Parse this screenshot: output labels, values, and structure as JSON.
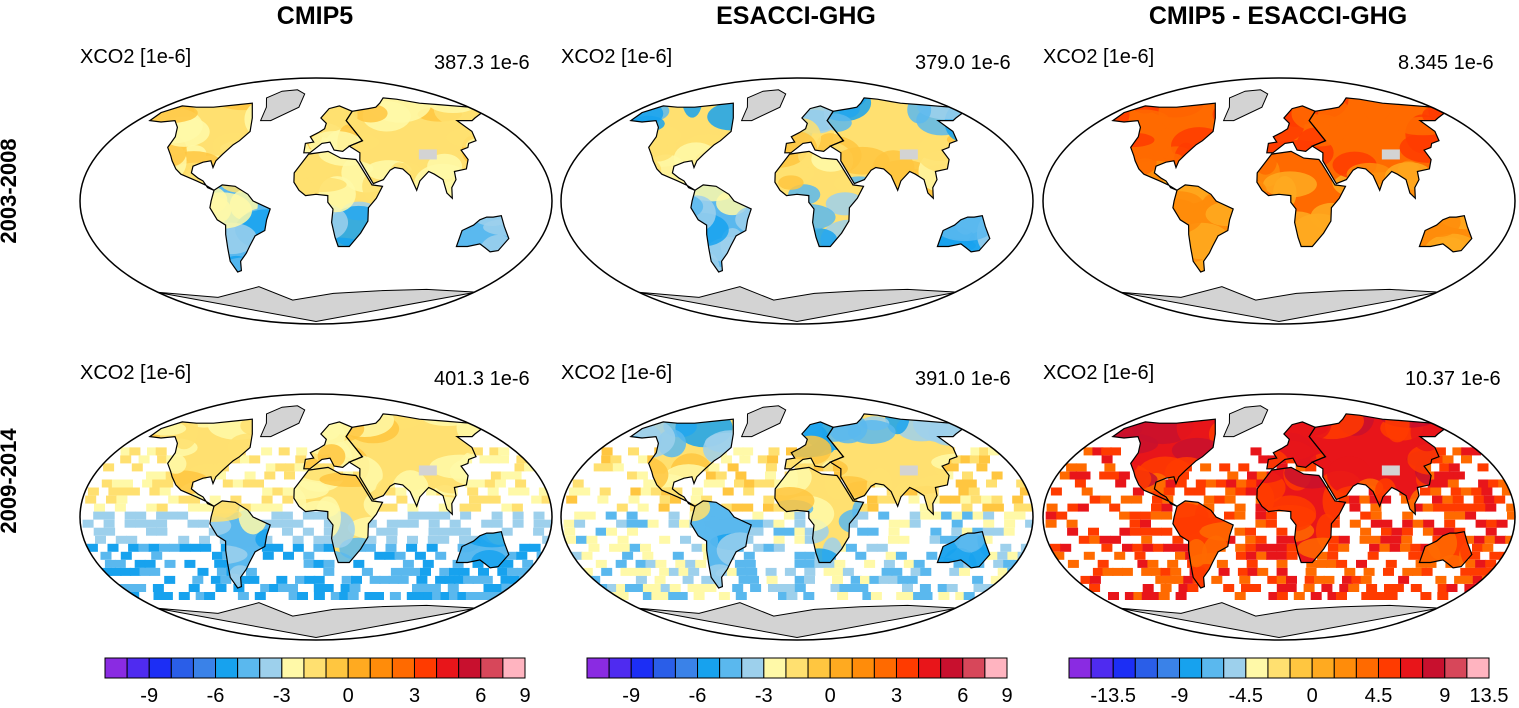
{
  "columns": [
    {
      "title": "CMIP5"
    },
    {
      "title": "ESACCI-GHG"
    },
    {
      "title": "CMIP5 - ESACCI-GHG"
    }
  ],
  "rows": [
    {
      "title": "2003-2008"
    },
    {
      "title": "2009-2014"
    }
  ],
  "panels": [
    {
      "var_label": "XCO2 [1e-6]",
      "mean_label": "387.3 1e-6",
      "scheme": "mixed_abs",
      "ocean_cover": false
    },
    {
      "var_label": "XCO2 [1e-6]",
      "mean_label": "379.0 1e-6",
      "scheme": "mixed_obs",
      "ocean_cover": false
    },
    {
      "var_label": "XCO2 [1e-6]",
      "mean_label": "8.345 1e-6",
      "scheme": "diff_orange",
      "ocean_cover": false
    },
    {
      "var_label": "XCO2 [1e-6]",
      "mean_label": "401.3 1e-6",
      "scheme": "mixed_abs",
      "ocean_cover": true
    },
    {
      "var_label": "XCO2 [1e-6]",
      "mean_label": "391.0 1e-6",
      "scheme": "mixed_obs",
      "ocean_cover": true
    },
    {
      "var_label": "XCO2 [1e-6]",
      "mean_label": "10.37 1e-6",
      "scheme": "diff_red",
      "ocean_cover": true
    }
  ],
  "colorbars": [
    {
      "tick_labels": [
        "-9",
        "-6",
        "-3",
        "0",
        "3",
        "6",
        "9"
      ]
    },
    {
      "tick_labels": [
        "-9",
        "-6",
        "-3",
        "0",
        "3",
        "6",
        "9"
      ]
    },
    {
      "tick_labels": [
        "-13.5",
        "-9",
        "-4.5",
        "0",
        "4.5",
        "9",
        "13.5"
      ]
    }
  ],
  "colors": {
    "palette": [
      "#8a2be2",
      "#4f2bf0",
      "#1c2ef5",
      "#2a5ee8",
      "#3a82e8",
      "#17a2ee",
      "#5ab8ee",
      "#9dd0ec",
      "#fff9a8",
      "#ffe070",
      "#ffc640",
      "#ffaa20",
      "#ff8c0a",
      "#ff6a00",
      "#ff3b00",
      "#e8151a",
      "#c8102e",
      "#d7475a",
      "#ffb4c0"
    ],
    "land_missing": "#d3d3d3",
    "outline": "#000000"
  }
}
